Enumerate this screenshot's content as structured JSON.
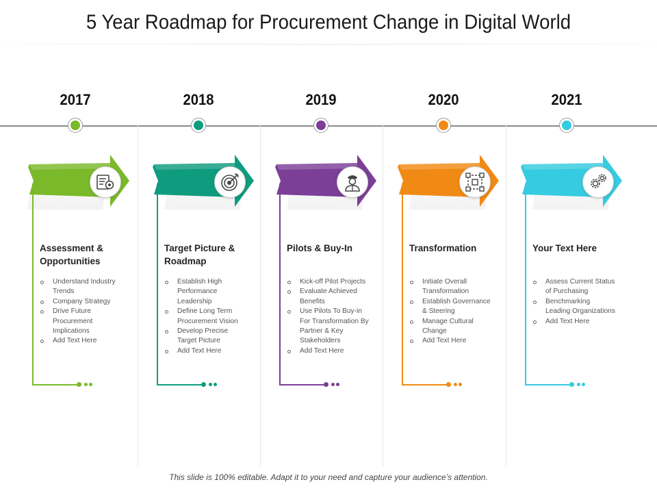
{
  "title": "5 Year Roadmap for Procurement Change in Digital World",
  "footer": "This slide is 100% editable. Adapt it to your need and capture your audience’s attention.",
  "columns": [
    {
      "year": "2017",
      "color": "#7ab929",
      "icon": "document-gear-icon",
      "heading": "Assessment & Opportunities",
      "bullets": [
        "Understand Industry Trends",
        "Company Strategy",
        "Drive Future Procurement Implications",
        "Add Text Here"
      ]
    },
    {
      "year": "2018",
      "color": "#0f9c7e",
      "icon": "target-icon",
      "heading": "Target Picture & Roadmap",
      "bullets": [
        "Establish High Performance Leadership",
        "Define Long Term Procurement Vision",
        "Develop Precise Target Picture",
        "Add Text Here"
      ]
    },
    {
      "year": "2019",
      "color": "#7b3f98",
      "icon": "pilot-icon",
      "heading": "Pilots & Buy-In",
      "bullets": [
        "Kick-off Pilot Projects",
        "Evaluate Achieved Benefits",
        "Use Pilots To Buy-in For Transformation By Partner & Key Stakeholders",
        "Add Text Here"
      ]
    },
    {
      "year": "2020",
      "color": "#f18a14",
      "icon": "transform-grid-icon",
      "heading": "Transformation",
      "bullets": [
        "Initiate Overall Transformation",
        "Establish Governance & Steering",
        "Manage Cultural Change",
        "Add Text Here"
      ]
    },
    {
      "year": "2021",
      "color": "#35cbe0",
      "icon": "gears-icon",
      "heading": "Your Text Here",
      "bullets": [
        "Assess Current Status of Purchasing",
        "Benchmarking Leading Organizations",
        "Add Text Here"
      ]
    }
  ]
}
